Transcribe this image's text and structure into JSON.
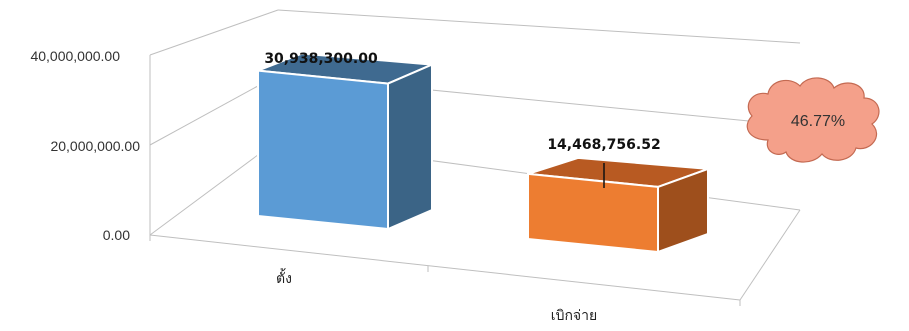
{
  "chart_data": {
    "type": "bar",
    "style": "3d-perspective",
    "categories": [
      "ตั้ง",
      "เบิกจ่าย"
    ],
    "values": [
      30938300.0,
      14468756.52
    ],
    "data_labels": [
      "30,938,300.00",
      "14,468,756.52"
    ],
    "y_ticks": [
      "0.00",
      "20,000,000.00",
      "40,000,000.00"
    ],
    "ylim": [
      0,
      40000000
    ],
    "grid": true,
    "legend": "none",
    "colors": {
      "bar1_front": "#5b9bd5",
      "bar1_side": "#3b6486",
      "bar1_top": "#3f6a90",
      "bar2_front": "#ed7d31",
      "bar2_side": "#9e4f1c",
      "bar2_top": "#b85a22"
    },
    "annotation": {
      "text": "46.77%",
      "shape": "cloud",
      "fill": "#f4a08a"
    }
  }
}
